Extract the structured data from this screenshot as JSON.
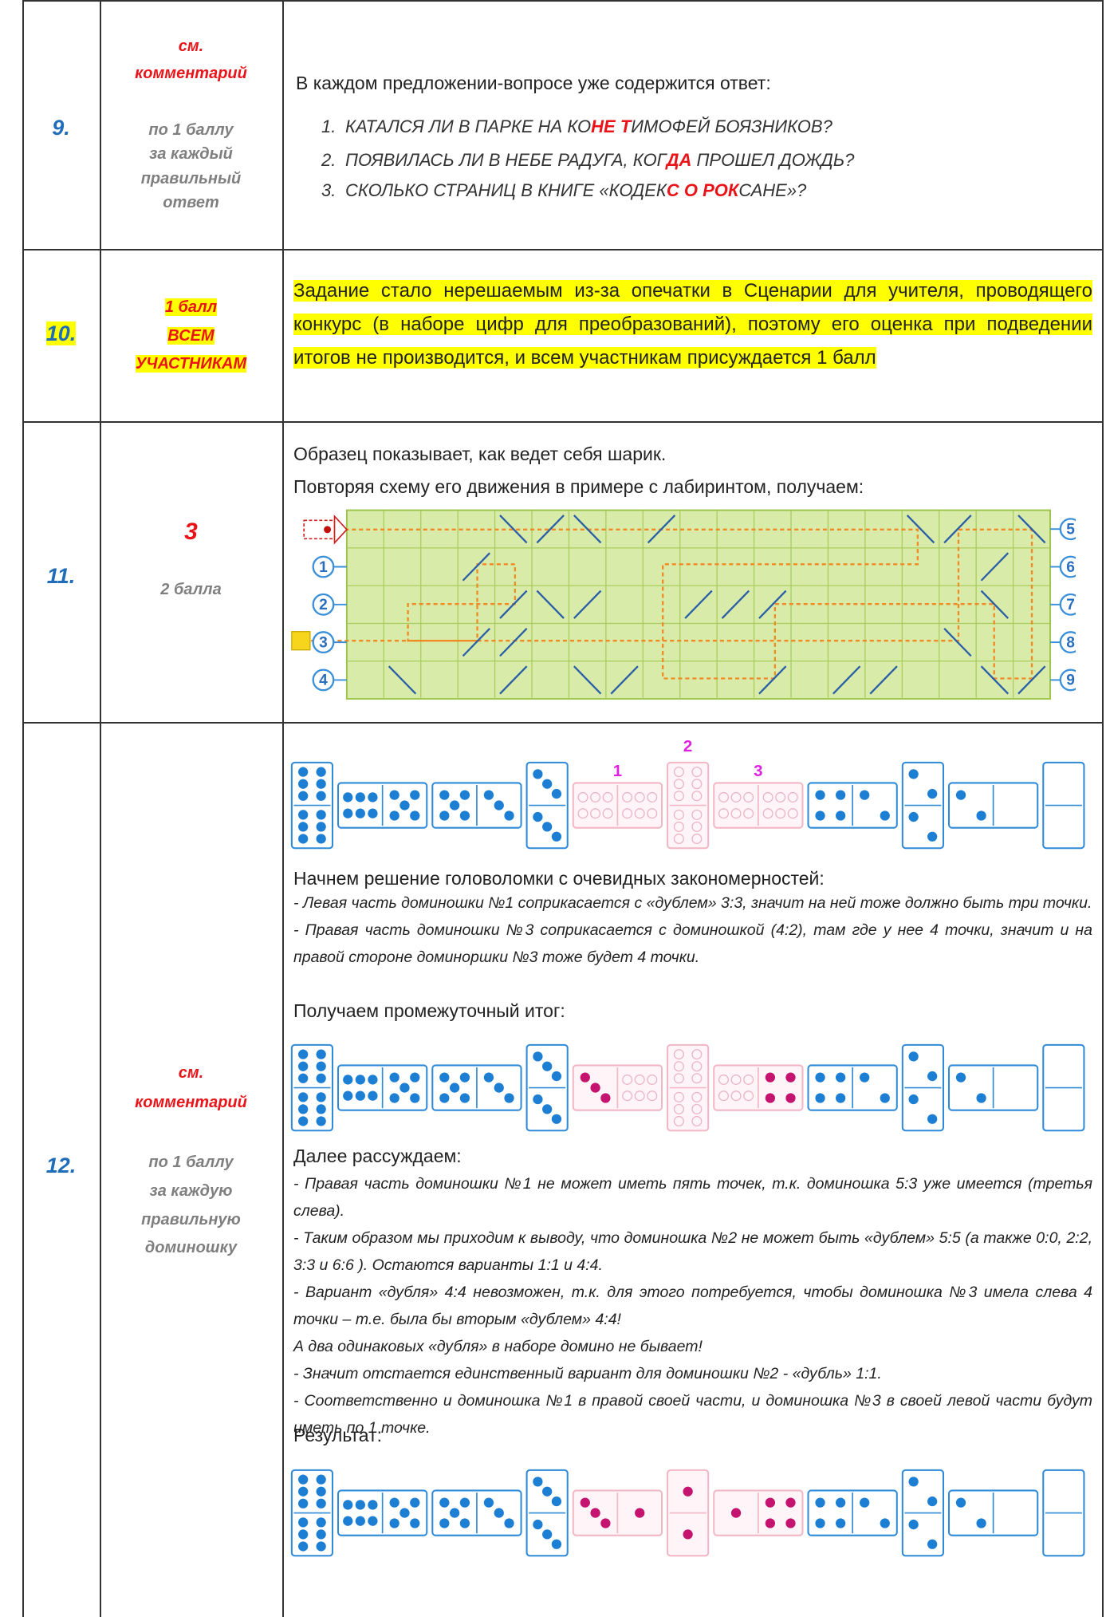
{
  "rows": [
    {
      "number": "9.",
      "score": [
        "см.",
        "комментарий"
      ],
      "score_note": [
        "по 1 баллу",
        "за каждый",
        "правильный",
        "ответ"
      ],
      "intro": "В каждом предложении-вопросе уже содержится ответ:",
      "items": [
        {
          "num": "1.",
          "parts": [
            "КАТАЛСЯ ЛИ В ПАРКЕ НА КО",
            "НЕ Т",
            "ИМОФЕЙ БОЯЗНИКОВ?"
          ]
        },
        {
          "num": "2.",
          "parts": [
            "ПОЯВИЛАСЬ ЛИ В НЕБЕ РАДУГА, КОГ",
            "ДА",
            " ПРОШЕЛ ДОЖДЬ?"
          ]
        },
        {
          "num": "3.",
          "parts": [
            "СКОЛЬКО СТРАНИЦ В КНИГЕ «КОДЕК",
            "С О РОК",
            "САНЕ»?"
          ]
        }
      ]
    },
    {
      "number": "10.",
      "score": [
        "1 балл",
        "ВСЕМ",
        "УЧАСТНИКАМ"
      ],
      "text": "Задание стало нерешаемым из-за опечатки в Сценарии для учителя, проводящего конкурс (в наборе цифр для преобразований), поэтому его оценка при подведении итогов не производится, и всем участникам присуждается 1 балл"
    },
    {
      "number": "11.",
      "score": [
        "3"
      ],
      "score_note": [
        "2 балла"
      ],
      "lines": [
        "Образец показывает, как ведет себя шарик.",
        "Повторяя схему его движения в примере с лабиринтом, получаем:"
      ],
      "maze": {
        "left": [
          "1",
          "2",
          "3",
          "4"
        ],
        "right": [
          "5",
          "6",
          "7",
          "8",
          "9"
        ]
      }
    },
    {
      "number": "12.",
      "score": [
        "см.",
        "комментарий"
      ],
      "score_note": [
        "по 1 баллу",
        "за каждую",
        "правильную",
        "доминошку"
      ],
      "blocks": [
        {
          "dominoes": [
            {
              "layout": "v",
              "halves": [
                6,
                6
              ],
              "style": "blue"
            },
            {
              "layout": "h",
              "halves": [
                6,
                5
              ],
              "style": "blue"
            },
            {
              "layout": "h",
              "halves": [
                5,
                3
              ],
              "style": "blue"
            },
            {
              "layout": "v",
              "halves": [
                3,
                3
              ],
              "style": "blue"
            },
            {
              "layout": "h",
              "halves": [
                null,
                null
              ],
              "style": "pink",
              "label": "1"
            },
            {
              "layout": "v",
              "halves": [
                null,
                null
              ],
              "style": "pink",
              "label": "2"
            },
            {
              "layout": "h",
              "halves": [
                null,
                null
              ],
              "style": "pink",
              "label": "3"
            },
            {
              "layout": "h",
              "halves": [
                4,
                2
              ],
              "style": "blue"
            },
            {
              "layout": "v",
              "halves": [
                2,
                2
              ],
              "style": "blue"
            },
            {
              "layout": "h",
              "halves": [
                2,
                0
              ],
              "style": "blue"
            },
            {
              "layout": "v",
              "halves": [
                0,
                0
              ],
              "style": "blue"
            }
          ]
        },
        {
          "heading": "Начнем решение головоломки с очевидных закономерностей:"
        },
        {
          "notes": [
            "- Левая часть доминошки №1 соприкасается с «дублем» 3:3, значит на ней тоже должно быть три точки.",
            "- Правая часть доминошки №3 соприкасается с доминошкой (4:2), там где у нее 4 точки, значит и на правой стороне доминоршки №3 тоже будет 4 точки."
          ]
        },
        {
          "heading": "Получаем промежуточный итог:"
        },
        {
          "dominoes": [
            {
              "layout": "v",
              "halves": [
                6,
                6
              ],
              "style": "blue"
            },
            {
              "layout": "h",
              "halves": [
                6,
                5
              ],
              "style": "blue"
            },
            {
              "layout": "h",
              "halves": [
                5,
                3
              ],
              "style": "blue"
            },
            {
              "layout": "v",
              "halves": [
                3,
                3
              ],
              "style": "blue"
            },
            {
              "layout": "h",
              "halves": [
                3,
                null
              ],
              "style": "pink"
            },
            {
              "layout": "v",
              "halves": [
                null,
                null
              ],
              "style": "pink"
            },
            {
              "layout": "h",
              "halves": [
                null,
                4
              ],
              "style": "pink"
            },
            {
              "layout": "h",
              "halves": [
                4,
                2
              ],
              "style": "blue"
            },
            {
              "layout": "v",
              "halves": [
                2,
                2
              ],
              "style": "blue"
            },
            {
              "layout": "h",
              "halves": [
                2,
                0
              ],
              "style": "blue"
            },
            {
              "layout": "v",
              "halves": [
                0,
                0
              ],
              "style": "blue"
            }
          ]
        },
        {
          "heading": "Далее рассуждаем:"
        },
        {
          "notes": [
            "- Правая часть доминошки №1 не может иметь пять точек, т.к. доминошка 5:3 уже имеется (третья слева).",
            "- Таким образом мы приходим к выводу, что доминошка №2 не может быть «дублем» 5:5 (а также 0:0, 2:2, 3:3 и 6:6 ). Остаются варианты 1:1 и 4:4.",
            "- Вариант «дубля» 4:4 невозможен, т.к. для этого потребуется, чтобы доминошка №3 имела слева 4 точки – т.е. была бы вторым «дублем» 4:4!",
            "А два одинаковых «дубля» в наборе домино не бывает!",
            "- Значит отстается единственный вариант для доминошки №2 - «дубль» 1:1.",
            "- Соответственно и доминошка №1 в правой своей части, и доминошка №3 в своей левой части будут иметь по 1 точке."
          ]
        },
        {
          "heading": "Результат:"
        },
        {
          "dominoes": [
            {
              "layout": "v",
              "halves": [
                6,
                6
              ],
              "style": "blue"
            },
            {
              "layout": "h",
              "halves": [
                6,
                5
              ],
              "style": "blue"
            },
            {
              "layout": "h",
              "halves": [
                5,
                3
              ],
              "style": "blue"
            },
            {
              "layout": "v",
              "halves": [
                3,
                3
              ],
              "style": "blue"
            },
            {
              "layout": "h",
              "halves": [
                3,
                1
              ],
              "style": "pink"
            },
            {
              "layout": "v",
              "halves": [
                1,
                1
              ],
              "style": "pink"
            },
            {
              "layout": "h",
              "halves": [
                1,
                4
              ],
              "style": "pink"
            },
            {
              "layout": "h",
              "halves": [
                4,
                2
              ],
              "style": "blue"
            },
            {
              "layout": "v",
              "halves": [
                2,
                2
              ],
              "style": "blue"
            },
            {
              "layout": "h",
              "halves": [
                2,
                0
              ],
              "style": "blue"
            },
            {
              "layout": "v",
              "halves": [
                0,
                0
              ],
              "style": "blue"
            }
          ]
        }
      ]
    }
  ]
}
